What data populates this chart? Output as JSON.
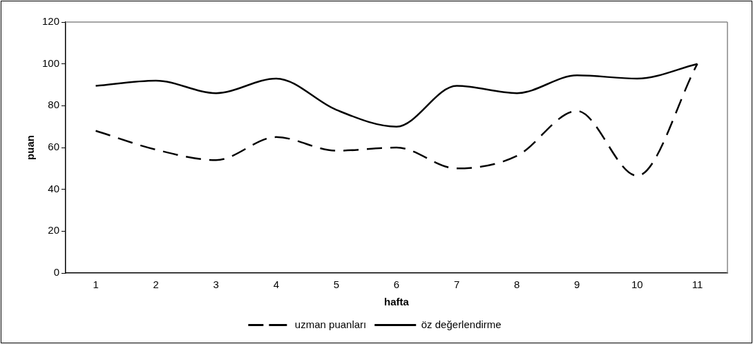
{
  "chart_data": {
    "type": "line",
    "xlabel": "hafta",
    "ylabel": "puan",
    "categories": [
      "1",
      "2",
      "3",
      "4",
      "5",
      "6",
      "7",
      "8",
      "9",
      "10",
      "11"
    ],
    "ylim": [
      0,
      120
    ],
    "yticks": [
      0,
      20,
      40,
      60,
      80,
      100,
      120
    ],
    "grid": false,
    "legend": "bottom",
    "marker": "none",
    "series": [
      {
        "name": "uzman puanları",
        "color": "#000000",
        "line_style": "dashed",
        "values": [
          68,
          59,
          54,
          65,
          58.5,
          60,
          50,
          56,
          77.5,
          46.5,
          100
        ]
      },
      {
        "name": "öz değerlendirme",
        "color": "#000000",
        "line_style": "solid",
        "values": [
          89.5,
          92,
          86,
          93,
          78,
          70,
          89.5,
          86,
          94.5,
          93,
          100
        ]
      }
    ]
  }
}
